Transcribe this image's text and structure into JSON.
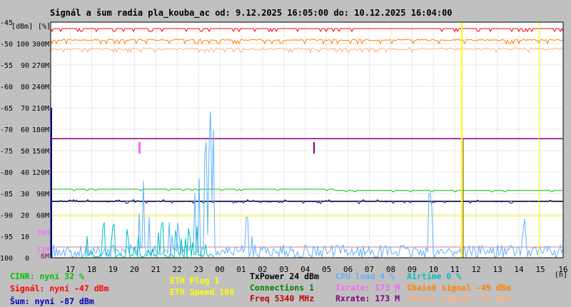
{
  "chart_data": {
    "type": "line",
    "title": "Signál a šum radia pla_kouba_ac od: 9.12.2025 16:05:00 do: 10.12.2025 16:04:00",
    "y_axes": {
      "dbm": {
        "unit_label": "[dBm]",
        "ticks": [
          "-45",
          "-50",
          "-55",
          "-60",
          "-65",
          "-70",
          "-75",
          "-80",
          "-85",
          "-90",
          "-95",
          "-100"
        ],
        "range": [
          -100,
          -45
        ]
      },
      "percent": {
        "unit_label": "[%]",
        "ticks": [
          "100",
          "90",
          "80",
          "70",
          "60",
          "50",
          "40",
          "30",
          "20",
          "10",
          "0"
        ],
        "range": [
          0,
          100
        ]
      },
      "speed": {
        "ticks": [
          "300M",
          "270M",
          "240M",
          "210M",
          "180M",
          "150M",
          "120M",
          "90M",
          "60M",
          "39M",
          "13M",
          "6M"
        ]
      }
    },
    "x_axis": {
      "unit_label": "[h]",
      "ticks": [
        "17",
        "18",
        "19",
        "20",
        "21",
        "22",
        "23",
        "00",
        "01",
        "02",
        "03",
        "04",
        "05",
        "06",
        "07",
        "08",
        "09",
        "10",
        "11",
        "12",
        "13",
        "14",
        "15",
        "16"
      ],
      "range_hours": [
        16.08,
        16.07
      ]
    },
    "grid": true,
    "series": [
      {
        "name": "CINR",
        "color": "#00c000",
        "level": 32
      },
      {
        "name": "Signál",
        "color": "#ff0000",
        "level": -47
      },
      {
        "name": "Šum",
        "color": "#0000c0",
        "level": -87
      },
      {
        "name": "ETH Plug",
        "color": "#ffff00",
        "level": 1
      },
      {
        "name": "ETH Speed",
        "color": "#ffff00",
        "level": 100
      },
      {
        "name": "TxPower",
        "color": "#000000",
        "level": 24
      },
      {
        "name": "Connections",
        "color": "#008000",
        "level": 1
      },
      {
        "name": "Freq",
        "color": "#c00000",
        "level": 5340
      },
      {
        "name": "CPU load",
        "color": "#60b0ff",
        "level": 4
      },
      {
        "name": "Txrate",
        "color": "#ff60ff",
        "level": 173
      },
      {
        "name": "Rxrate",
        "color": "#800080",
        "level": 173
      },
      {
        "name": "Airtime",
        "color": "#00c0c0",
        "level": 0
      },
      {
        "name": "Chain0 signal",
        "color": "#ff8000",
        "level": -49
      },
      {
        "name": "Chain1 signal",
        "color": "#ffb080",
        "level": -51
      }
    ]
  },
  "legend": {
    "col1": [
      "CINR: nyní 32 %",
      "Signál: nyní -47 dBm",
      "Šum: nyní -87 dBm"
    ],
    "col2": [
      "ETH Plug 1",
      "ETH Speed 100"
    ],
    "col3": [
      "TxPower 24 dBm",
      "Connections 1",
      "Freq 5340 MHz"
    ],
    "col4": [
      "CPU load 4 %",
      "Txrate: 173 M",
      "Rxrate: 173 M"
    ],
    "col5": [
      "Airtime 0 %",
      "Chain0 signal -49 dBm",
      "Chain1 signal -51 dBm"
    ]
  },
  "colors": {
    "cinr": "#00c000",
    "signal": "#ff0000",
    "noise": "#0000c0",
    "eth": "#ffff00",
    "txpower": "#000000",
    "connections": "#008000",
    "freq": "#c00000",
    "cpu": "#60b0ff",
    "txrate": "#ff60ff",
    "rxrate": "#800080",
    "airtime": "#00c0c0",
    "chain0": "#ff8000",
    "chain1": "#ffb080",
    "grid": "#d0d0d0",
    "plot_bg": "#ffffff"
  }
}
